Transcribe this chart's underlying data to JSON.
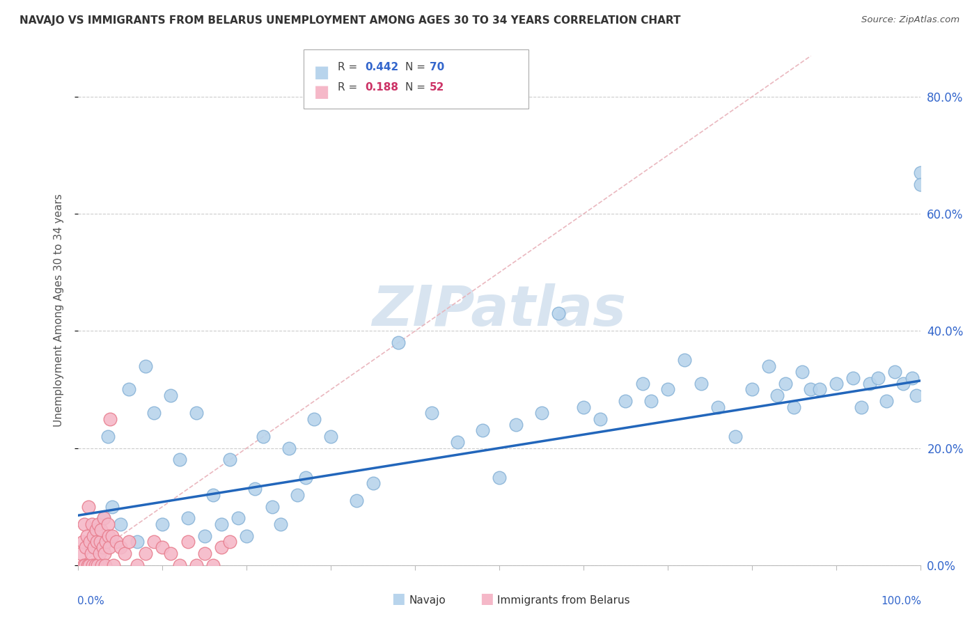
{
  "title": "NAVAJO VS IMMIGRANTS FROM BELARUS UNEMPLOYMENT AMONG AGES 30 TO 34 YEARS CORRELATION CHART",
  "source": "Source: ZipAtlas.com",
  "ylabel": "Unemployment Among Ages 30 to 34 years",
  "navajo_color": "#b8d4ec",
  "navajo_edge_color": "#8ab4d8",
  "belarus_color": "#f5b8c8",
  "belarus_edge_color": "#e88090",
  "trend_navajo_color": "#2266bb",
  "trend_belarus_color": "#cc3366",
  "diagonal_color": "#e8b0b8",
  "watermark_color": "#d8e4f0",
  "grid_color": "#cccccc",
  "bg_color": "#ffffff",
  "ytick_values": [
    0,
    20,
    40,
    60,
    80
  ],
  "xlim": [
    0,
    100
  ],
  "ylim": [
    0,
    87
  ],
  "navajo_points_x": [
    1.5,
    2.0,
    3.0,
    3.5,
    4.0,
    5.0,
    6.0,
    7.0,
    8.0,
    9.0,
    10.0,
    11.0,
    12.0,
    13.0,
    14.0,
    15.0,
    16.0,
    17.0,
    18.0,
    19.0,
    20.0,
    21.0,
    22.0,
    23.0,
    24.0,
    25.0,
    26.0,
    27.0,
    28.0,
    30.0,
    33.0,
    35.0,
    38.0,
    42.0,
    45.0,
    48.0,
    50.0,
    52.0,
    55.0,
    57.0,
    60.0,
    62.0,
    65.0,
    67.0,
    68.0,
    70.0,
    72.0,
    74.0,
    76.0,
    78.0,
    80.0,
    82.0,
    83.0,
    84.0,
    85.0,
    86.0,
    87.0,
    88.0,
    90.0,
    92.0,
    93.0,
    94.0,
    95.0,
    96.0,
    97.0,
    98.0,
    99.0,
    99.5,
    100.0,
    100.0
  ],
  "navajo_points_y": [
    3.0,
    5.0,
    8.0,
    22.0,
    10.0,
    7.0,
    30.0,
    4.0,
    34.0,
    26.0,
    7.0,
    29.0,
    18.0,
    8.0,
    26.0,
    5.0,
    12.0,
    7.0,
    18.0,
    8.0,
    5.0,
    13.0,
    22.0,
    10.0,
    7.0,
    20.0,
    12.0,
    15.0,
    25.0,
    22.0,
    11.0,
    14.0,
    38.0,
    26.0,
    21.0,
    23.0,
    15.0,
    24.0,
    26.0,
    43.0,
    27.0,
    25.0,
    28.0,
    31.0,
    28.0,
    30.0,
    35.0,
    31.0,
    27.0,
    22.0,
    30.0,
    34.0,
    29.0,
    31.0,
    27.0,
    33.0,
    30.0,
    30.0,
    31.0,
    32.0,
    27.0,
    31.0,
    32.0,
    28.0,
    33.0,
    31.0,
    32.0,
    29.0,
    67.0,
    65.0
  ],
  "belarus_points_x": [
    0.3,
    0.5,
    0.6,
    0.7,
    0.8,
    0.9,
    1.0,
    1.1,
    1.2,
    1.3,
    1.4,
    1.5,
    1.6,
    1.7,
    1.8,
    1.9,
    2.0,
    2.1,
    2.2,
    2.3,
    2.4,
    2.5,
    2.6,
    2.7,
    2.8,
    2.9,
    3.0,
    3.1,
    3.2,
    3.3,
    3.5,
    3.6,
    3.7,
    3.8,
    4.0,
    4.2,
    4.5,
    5.0,
    5.5,
    6.0,
    7.0,
    8.0,
    9.0,
    10.0,
    11.0,
    12.0,
    13.0,
    14.0,
    15.0,
    16.0,
    17.0,
    18.0
  ],
  "belarus_points_y": [
    2.0,
    4.0,
    0.0,
    7.0,
    0.0,
    3.0,
    5.0,
    0.0,
    10.0,
    0.0,
    4.0,
    2.0,
    7.0,
    0.0,
    5.0,
    3.0,
    0.0,
    6.0,
    4.0,
    0.0,
    7.0,
    2.0,
    4.0,
    6.0,
    0.0,
    3.0,
    8.0,
    2.0,
    0.0,
    4.0,
    7.0,
    5.0,
    3.0,
    25.0,
    5.0,
    0.0,
    4.0,
    3.0,
    2.0,
    4.0,
    0.0,
    2.0,
    4.0,
    3.0,
    2.0,
    0.0,
    4.0,
    0.0,
    2.0,
    0.0,
    3.0,
    4.0
  ],
  "navajo_trend_x0": 0,
  "navajo_trend_y0": 8.5,
  "navajo_trend_x1": 100,
  "navajo_trend_y1": 31.5,
  "diagonal_x0": 0,
  "diagonal_y0": 0,
  "diagonal_x1": 87,
  "diagonal_y1": 87
}
